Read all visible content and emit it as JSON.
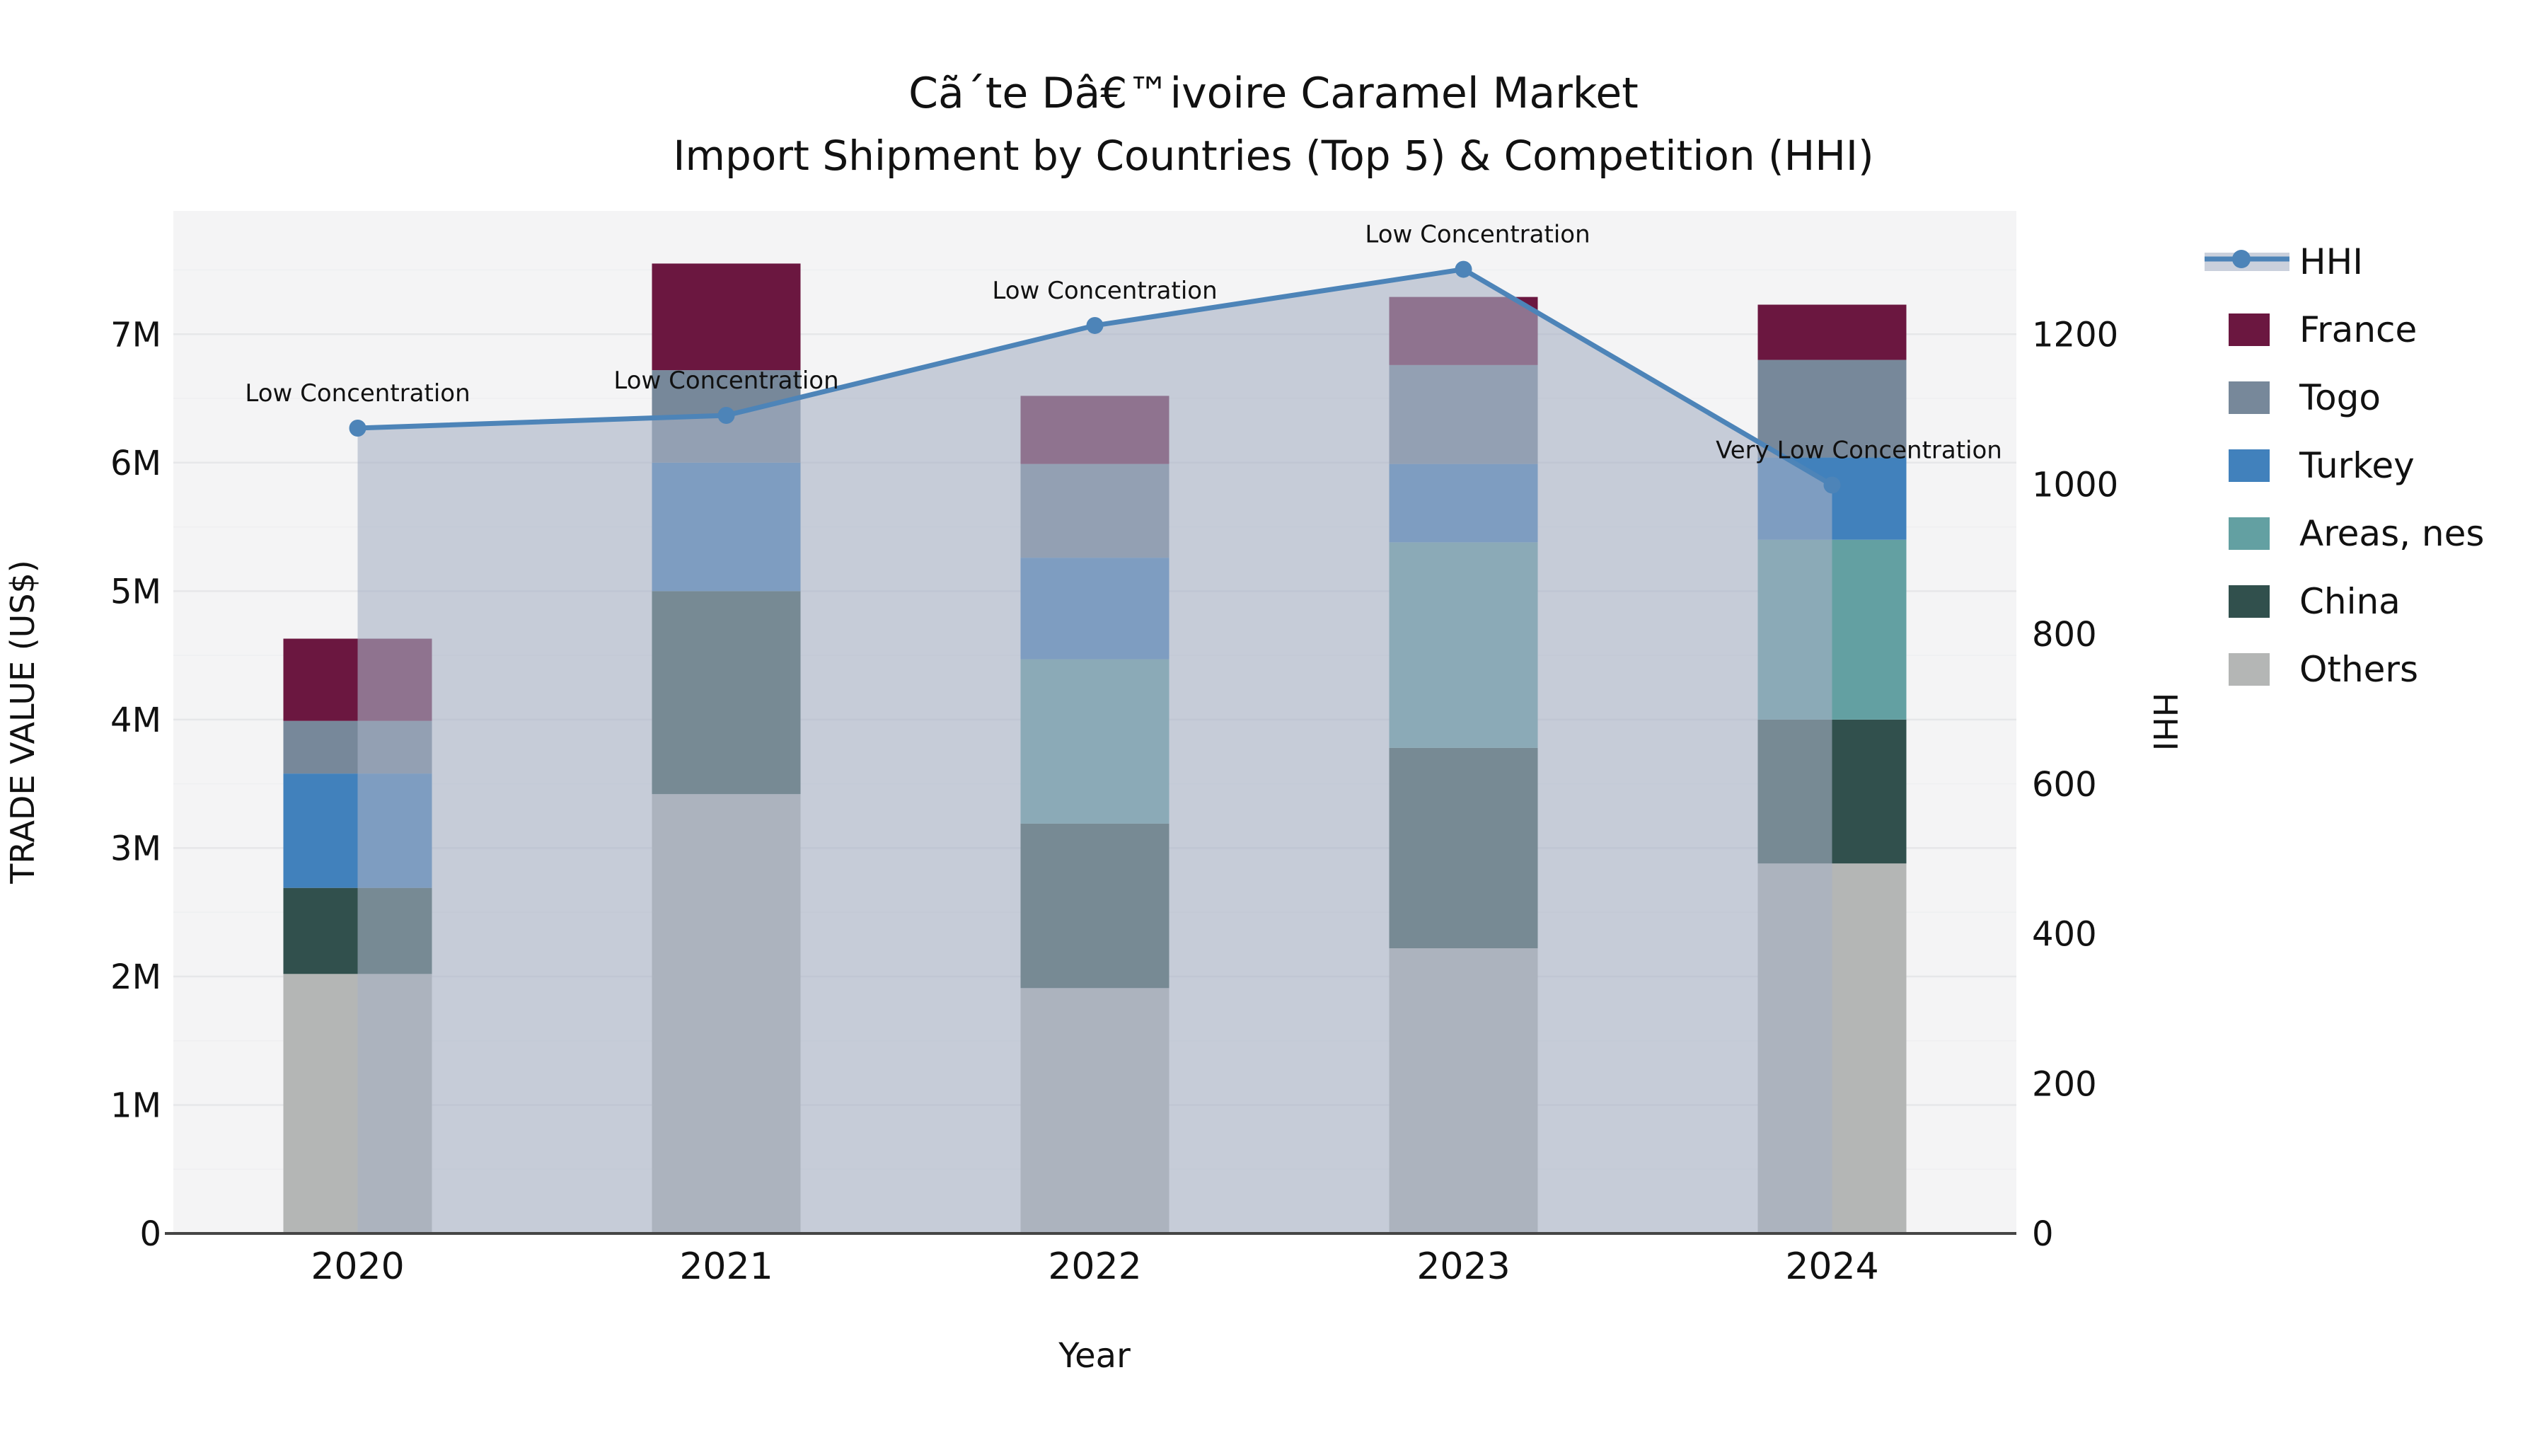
{
  "header": {
    "title_line1": "Cã´te Dâ€™ivoire Caramel Market",
    "title_line2": "Import Shipment by Countries (Top 5) & Competition (HHI)"
  },
  "chart_data": {
    "type": "combo: stacked-bar (trade value) + line (HHI) with shaded area",
    "categories": [
      "2020",
      "2021",
      "2022",
      "2023",
      "2024"
    ],
    "xlabel": "Year",
    "ylabel_left": "TRADE VALUE (US$)",
    "ylabel_right": "HHI",
    "ylim_left_usd": [
      0,
      7960000
    ],
    "ylim_right_hhi": [
      0,
      1365
    ],
    "grid": "horizontal major 1M, minor 0.5M",
    "legend_position": "upper right, outside plot",
    "bar_width_frac": 0.4,
    "bar_series_bottom_to_top": [
      {
        "name": "Others",
        "color": "#b4b6b5",
        "values_musd": [
          2.02,
          3.42,
          1.91,
          2.22,
          2.88
        ]
      },
      {
        "name": "China",
        "color": "#31504d",
        "values_musd": [
          0.67,
          1.58,
          1.28,
          1.56,
          1.12
        ]
      },
      {
        "name": "Areas, nes",
        "color": "#63a0a2",
        "values_musd": [
          0.0,
          0.0,
          1.28,
          1.6,
          1.4
        ]
      },
      {
        "name": "Turkey",
        "color": "#4181bc",
        "values_musd": [
          0.89,
          1.0,
          0.79,
          0.61,
          0.64
        ]
      },
      {
        "name": "Togo",
        "color": "#77889a",
        "values_musd": [
          0.41,
          0.72,
          0.73,
          0.77,
          0.76
        ]
      },
      {
        "name": "France",
        "color": "#6b1740",
        "values_musd": [
          0.64,
          0.83,
          0.53,
          0.53,
          0.43
        ]
      }
    ],
    "bar_totals_musd": [
      4.63,
      7.55,
      6.52,
      7.29,
      7.23
    ],
    "hhi_series": {
      "name": "HHI",
      "line_color": "#4d84b8",
      "area_fill_color": "rgba(166,177,197,0.6)",
      "values": [
        1075,
        1092,
        1212,
        1287,
        999
      ]
    },
    "annotations": [
      {
        "year": "2020",
        "text": "Low Concentration"
      },
      {
        "year": "2021",
        "text": "Low Concentration"
      },
      {
        "year": "2022",
        "text": "Low Concentration"
      },
      {
        "year": "2023",
        "text": "Low Concentration"
      },
      {
        "year": "2024",
        "text": "Very Low Concentration"
      }
    ],
    "left_ticks": [
      "0",
      "1M",
      "2M",
      "3M",
      "4M",
      "5M",
      "6M",
      "7M"
    ],
    "right_ticks": [
      "0",
      "200",
      "400",
      "600",
      "800",
      "1000",
      "1200"
    ]
  },
  "legend": {
    "items": [
      {
        "label": "HHI",
        "type": "line",
        "color": "#4d84b8"
      },
      {
        "label": "France",
        "type": "swatch",
        "color": "#6b1740"
      },
      {
        "label": "Togo",
        "type": "swatch",
        "color": "#77889a"
      },
      {
        "label": "Turkey",
        "type": "swatch",
        "color": "#4181bc"
      },
      {
        "label": "Areas, nes",
        "type": "swatch",
        "color": "#63a0a2"
      },
      {
        "label": "China",
        "type": "swatch",
        "color": "#31504d"
      },
      {
        "label": "Others",
        "type": "swatch",
        "color": "#b4b6b5"
      }
    ]
  },
  "colors": {
    "plot_background": "#f4f4f5",
    "figure_background": "#ffffff",
    "axis_spine": "#454545",
    "gridline_major": "#e6e7e9",
    "gridline_minor": "#eeeff1"
  }
}
